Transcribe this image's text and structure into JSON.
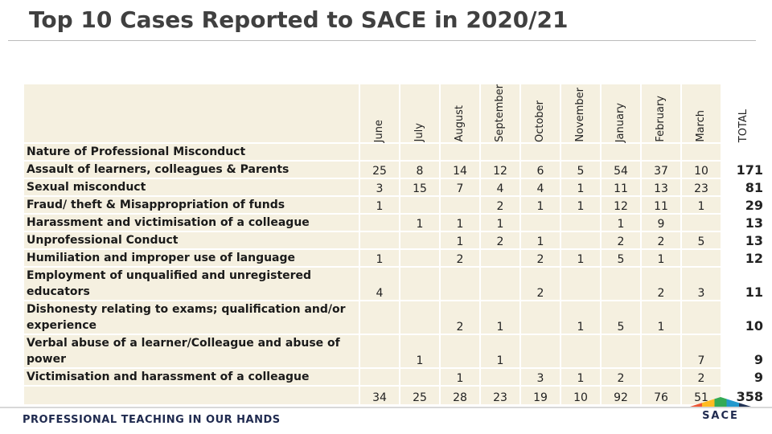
{
  "title": "Top 10 Cases Reported to SACE in 2020/21",
  "table": {
    "label_header": "Nature of Professional Misconduct",
    "columns": [
      "June",
      "July",
      "August",
      "September",
      "October",
      "November",
      "January",
      "February",
      "March",
      "TOTAL"
    ],
    "rows": [
      {
        "label": "Assault of learners, colleagues & Parents",
        "values": [
          25,
          8,
          14,
          12,
          6,
          5,
          54,
          37,
          10,
          171
        ]
      },
      {
        "label": "Sexual misconduct",
        "values": [
          3,
          15,
          7,
          4,
          4,
          1,
          11,
          13,
          23,
          81
        ]
      },
      {
        "label": "Fraud/ theft & Misappropriation of funds",
        "values": [
          1,
          null,
          null,
          2,
          1,
          1,
          12,
          11,
          1,
          29
        ]
      },
      {
        "label": "Harassment and victimisation of a colleague",
        "values": [
          null,
          1,
          1,
          1,
          null,
          null,
          1,
          9,
          null,
          13
        ]
      },
      {
        "label": "Unprofessional Conduct",
        "values": [
          null,
          null,
          1,
          2,
          1,
          null,
          2,
          2,
          5,
          13
        ]
      },
      {
        "label": "Humiliation and improper use of language",
        "values": [
          1,
          null,
          2,
          null,
          2,
          1,
          5,
          1,
          null,
          12
        ]
      },
      {
        "label": "Employment of unqualified and unregistered educators",
        "values": [
          4,
          null,
          null,
          null,
          2,
          null,
          null,
          2,
          3,
          11
        ]
      },
      {
        "label": "Dishonesty relating to exams; qualification and/or experience",
        "values": [
          null,
          null,
          2,
          1,
          null,
          1,
          5,
          1,
          null,
          10
        ]
      },
      {
        "label": "Verbal abuse of a learner/Colleague and abuse of power",
        "values": [
          null,
          1,
          null,
          1,
          null,
          null,
          null,
          null,
          7,
          9
        ]
      },
      {
        "label": "Victimisation and harassment of a colleague",
        "values": [
          null,
          null,
          1,
          null,
          3,
          1,
          2,
          null,
          2,
          9
        ]
      }
    ],
    "totals": [
      34,
      25,
      28,
      23,
      19,
      10,
      92,
      76,
      51,
      358
    ]
  },
  "footer": {
    "tagline": "PROFESSIONAL TEACHING IN OUR HANDS",
    "logo": "SACE"
  }
}
